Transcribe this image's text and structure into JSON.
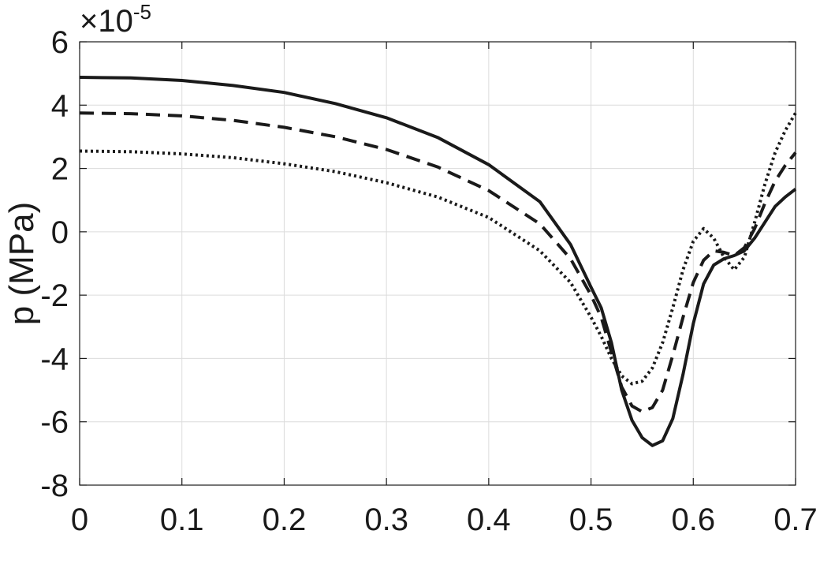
{
  "chart_data": {
    "type": "line",
    "title": "",
    "xlabel": "",
    "ylabel": "p (MPa)",
    "y_exponent": {
      "prefix": "×10",
      "power": "-5"
    },
    "xlim": [
      0,
      0.7
    ],
    "ylim": [
      -8,
      6
    ],
    "xticks": [
      0,
      0.1,
      0.2,
      0.3,
      0.4,
      0.5,
      0.6,
      0.7
    ],
    "xtick_labels": [
      "0",
      "0.1",
      "0.2",
      "0.3",
      "0.4",
      "0.5",
      "0.6",
      "0.7"
    ],
    "yticks": [
      -8,
      -6,
      -4,
      -2,
      0,
      2,
      4,
      6
    ],
    "ytick_labels": [
      "-8",
      "-6",
      "-4",
      "-2",
      "0",
      "2",
      "4",
      "6"
    ],
    "grid": true,
    "legend": "none",
    "series": [
      {
        "style": "solid",
        "color": "#1a1a1a",
        "points": [
          [
            0,
            4.88
          ],
          [
            0.05,
            4.86
          ],
          [
            0.1,
            4.78
          ],
          [
            0.15,
            4.62
          ],
          [
            0.2,
            4.4
          ],
          [
            0.25,
            4.05
          ],
          [
            0.3,
            3.6
          ],
          [
            0.35,
            2.98
          ],
          [
            0.4,
            2.12
          ],
          [
            0.45,
            0.95
          ],
          [
            0.48,
            -0.4
          ],
          [
            0.5,
            -1.75
          ],
          [
            0.51,
            -2.4
          ],
          [
            0.52,
            -3.5
          ],
          [
            0.53,
            -5.0
          ],
          [
            0.54,
            -5.95
          ],
          [
            0.55,
            -6.5
          ],
          [
            0.56,
            -6.75
          ],
          [
            0.57,
            -6.6
          ],
          [
            0.58,
            -5.9
          ],
          [
            0.59,
            -4.5
          ],
          [
            0.6,
            -2.9
          ],
          [
            0.61,
            -1.65
          ],
          [
            0.62,
            -1.05
          ],
          [
            0.63,
            -0.85
          ],
          [
            0.64,
            -0.75
          ],
          [
            0.65,
            -0.6
          ],
          [
            0.66,
            -0.2
          ],
          [
            0.67,
            0.3
          ],
          [
            0.68,
            0.8
          ],
          [
            0.69,
            1.1
          ],
          [
            0.7,
            1.35
          ]
        ]
      },
      {
        "style": "dashed",
        "color": "#1a1a1a",
        "points": [
          [
            0,
            3.75
          ],
          [
            0.05,
            3.73
          ],
          [
            0.1,
            3.66
          ],
          [
            0.15,
            3.52
          ],
          [
            0.2,
            3.3
          ],
          [
            0.25,
            3.0
          ],
          [
            0.3,
            2.6
          ],
          [
            0.35,
            2.05
          ],
          [
            0.4,
            1.3
          ],
          [
            0.45,
            0.25
          ],
          [
            0.48,
            -0.85
          ],
          [
            0.5,
            -2.0
          ],
          [
            0.51,
            -2.7
          ],
          [
            0.52,
            -3.8
          ],
          [
            0.53,
            -4.9
          ],
          [
            0.54,
            -5.5
          ],
          [
            0.55,
            -5.68
          ],
          [
            0.56,
            -5.55
          ],
          [
            0.57,
            -5.0
          ],
          [
            0.58,
            -3.9
          ],
          [
            0.59,
            -2.7
          ],
          [
            0.6,
            -1.6
          ],
          [
            0.61,
            -0.9
          ],
          [
            0.62,
            -0.6
          ],
          [
            0.63,
            -0.65
          ],
          [
            0.64,
            -0.75
          ],
          [
            0.65,
            -0.5
          ],
          [
            0.66,
            0.1
          ],
          [
            0.67,
            0.9
          ],
          [
            0.68,
            1.6
          ],
          [
            0.69,
            2.1
          ],
          [
            0.7,
            2.5
          ]
        ]
      },
      {
        "style": "dotted",
        "color": "#1a1a1a",
        "points": [
          [
            0,
            2.55
          ],
          [
            0.05,
            2.53
          ],
          [
            0.1,
            2.46
          ],
          [
            0.15,
            2.34
          ],
          [
            0.2,
            2.15
          ],
          [
            0.25,
            1.9
          ],
          [
            0.3,
            1.55
          ],
          [
            0.35,
            1.1
          ],
          [
            0.4,
            0.45
          ],
          [
            0.45,
            -0.6
          ],
          [
            0.48,
            -1.6
          ],
          [
            0.5,
            -2.7
          ],
          [
            0.51,
            -3.3
          ],
          [
            0.52,
            -4.0
          ],
          [
            0.53,
            -4.55
          ],
          [
            0.54,
            -4.8
          ],
          [
            0.55,
            -4.72
          ],
          [
            0.56,
            -4.3
          ],
          [
            0.57,
            -3.5
          ],
          [
            0.58,
            -2.4
          ],
          [
            0.59,
            -1.2
          ],
          [
            0.6,
            -0.3
          ],
          [
            0.61,
            0.1
          ],
          [
            0.62,
            -0.2
          ],
          [
            0.63,
            -0.8
          ],
          [
            0.64,
            -1.2
          ],
          [
            0.65,
            -0.8
          ],
          [
            0.66,
            0.3
          ],
          [
            0.67,
            1.5
          ],
          [
            0.68,
            2.5
          ],
          [
            0.69,
            3.2
          ],
          [
            0.7,
            3.75
          ]
        ]
      }
    ]
  }
}
